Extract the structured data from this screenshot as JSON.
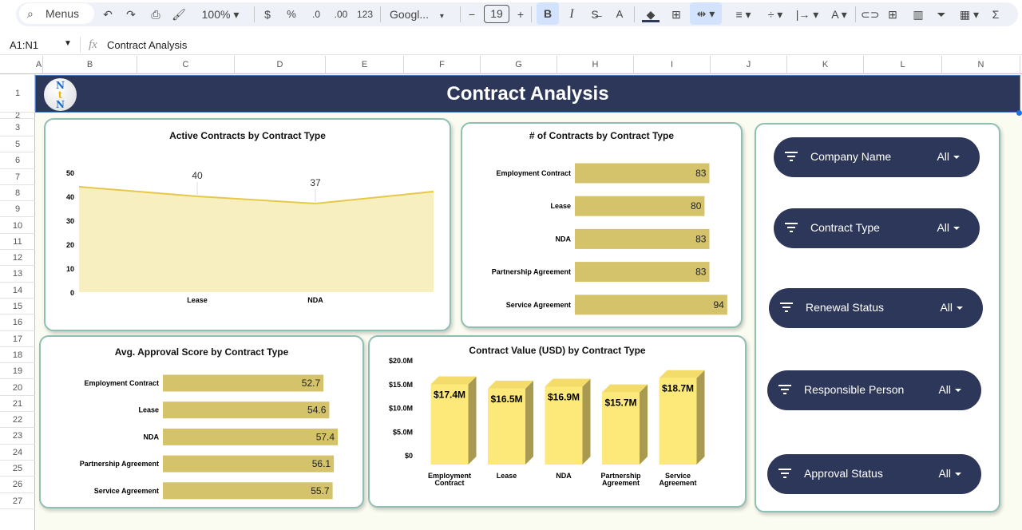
{
  "toolbar": {
    "search": "Menus",
    "zoom": "100%",
    "currency": "$",
    "percent": "%",
    "dec_less": ".0",
    "dec_more": ".00",
    "format": "123",
    "font": "Googl...",
    "font_size": "19",
    "minus": "−",
    "plus": "+",
    "bold": "B",
    "italic": "I",
    "text_color": "A",
    "sum": "Σ"
  },
  "formula_bar": {
    "cell_ref": "A1:N1",
    "fx": "fx",
    "value": "Contract Analysis"
  },
  "columns": [
    "A",
    "B",
    "C",
    "D",
    "E",
    "F",
    "G",
    "H",
    "I",
    "J",
    "K",
    "L",
    "N"
  ],
  "rows": [
    "1",
    "2",
    "3",
    "5",
    "6",
    "7",
    "8",
    "9",
    "10",
    "11",
    "12",
    "13",
    "14",
    "15",
    "16",
    "17",
    "18",
    "19",
    "20",
    "21",
    "22",
    "23",
    "24",
    "25",
    "26",
    "27"
  ],
  "banner": {
    "title": "Contract Analysis",
    "logo_text": "NtN"
  },
  "filters": [
    {
      "label": "Company Name",
      "value": "All"
    },
    {
      "label": "Contract Type",
      "value": "All"
    },
    {
      "label": "Renewal Status",
      "value": "All"
    },
    {
      "label": "Responsible Person",
      "value": "All"
    },
    {
      "label": "Approval Status",
      "value": "All"
    }
  ],
  "colors": {
    "banner": "#2d3759",
    "area_fill": "#f7efc0",
    "area_line": "#e5c84a",
    "bar": "#d4c36a",
    "bar3d_front": "#fde87a",
    "bar3d_side": "#a99a52",
    "card_border": "#8fbfb3"
  },
  "chart_data": [
    {
      "type": "area",
      "title": "Active Contracts by Contract Type",
      "x_tick_labels": [
        "",
        "Lease",
        "NDA",
        ""
      ],
      "values": [
        44,
        40,
        37,
        42
      ],
      "data_labels": [
        "",
        "40",
        "37",
        ""
      ],
      "ylim": [
        0,
        50
      ],
      "yticks": [
        0,
        10,
        20,
        30,
        40,
        50
      ],
      "grid": false
    },
    {
      "type": "bar",
      "orientation": "horizontal",
      "title": "# of Contracts by Contract Type",
      "categories": [
        "Employment Contract",
        "Lease",
        "NDA",
        "Partnership Agreement",
        "Service Agreement"
      ],
      "values": [
        83,
        80,
        83,
        83,
        94
      ],
      "xlim": [
        0,
        100
      ]
    },
    {
      "type": "bar",
      "orientation": "horizontal",
      "title": "Avg. Approval Score by Contract Type",
      "categories": [
        "Employment Contract",
        "Lease",
        "NDA",
        "Partnership Agreement",
        "Service Agreement"
      ],
      "values": [
        52.7,
        54.6,
        57.4,
        56.1,
        55.7
      ],
      "xlim": [
        0,
        60
      ]
    },
    {
      "type": "bar",
      "title": "Contract Value (USD) by Contract Type",
      "categories": [
        [
          "Employment",
          "Contract"
        ],
        [
          "Lease"
        ],
        [
          "NDA"
        ],
        [
          "Partnership",
          "Agreement"
        ],
        [
          "Service",
          "Agreement"
        ]
      ],
      "values": [
        17.4,
        16.5,
        16.9,
        15.7,
        18.7
      ],
      "data_labels": [
        "$17.4M",
        "$16.5M",
        "$16.9M",
        "$15.7M",
        "$18.7M"
      ],
      "ylim": [
        0,
        20
      ],
      "yticks": [
        "$0",
        "$5.0M",
        "$10.0M",
        "$15.0M",
        "$20.0M"
      ],
      "unit": "USD millions"
    }
  ]
}
